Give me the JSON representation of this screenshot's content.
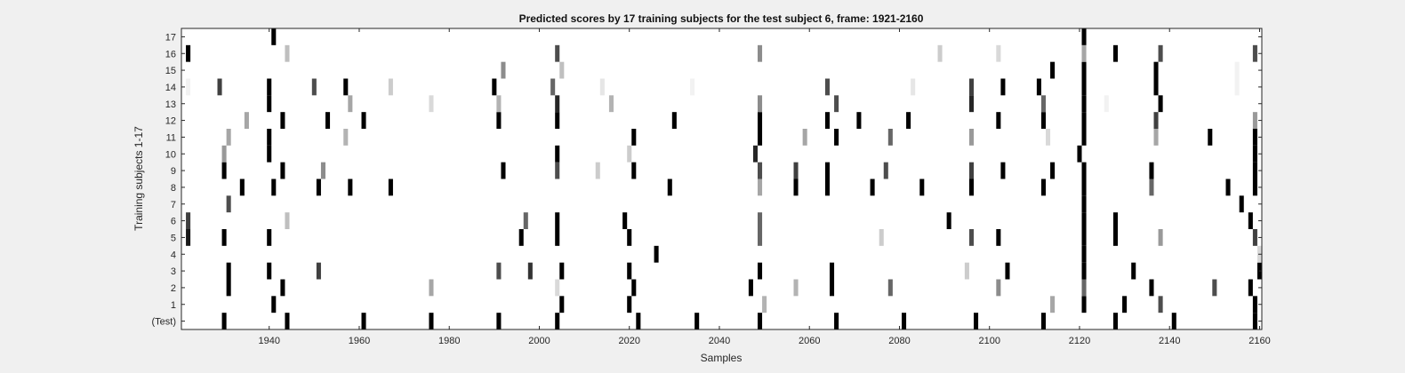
{
  "chart_data": {
    "type": "heatmap",
    "title": "Predicted scores by 17 training subjects for the test subject 6, frame: 1921-2160",
    "xlabel": "Samples",
    "ylabel": "Training subjects 1-17",
    "xlim": [
      1921,
      2160
    ],
    "x_ticks": [
      1940,
      1960,
      1980,
      2000,
      2020,
      2040,
      2060,
      2080,
      2100,
      2120,
      2140,
      2160
    ],
    "rows": [
      "(Test)",
      "1",
      "2",
      "3",
      "4",
      "5",
      "6",
      "7",
      "8",
      "9",
      "10",
      "11",
      "12",
      "13",
      "14",
      "15",
      "16",
      "17"
    ],
    "value_scale": "0 = white, 1 = black",
    "cells": [
      {
        "row": "(Test)",
        "marks": [
          [
            1930,
            1
          ],
          [
            1944,
            1
          ],
          [
            1961,
            1
          ],
          [
            1976,
            1
          ],
          [
            1991,
            1
          ],
          [
            2004,
            1
          ],
          [
            2022,
            1
          ],
          [
            2035,
            1
          ],
          [
            2049,
            1
          ],
          [
            2066,
            1
          ],
          [
            2081,
            1
          ],
          [
            2097,
            1
          ],
          [
            2112,
            1
          ],
          [
            2128,
            1
          ],
          [
            2141,
            1
          ],
          [
            2159,
            1
          ]
        ]
      },
      {
        "row": "1",
        "marks": [
          [
            1941,
            1
          ],
          [
            2005,
            1
          ],
          [
            2020,
            1
          ],
          [
            2050,
            0.3
          ],
          [
            2114,
            0.35
          ],
          [
            2121,
            1
          ],
          [
            2130,
            1
          ],
          [
            2138,
            0.7
          ],
          [
            2159,
            1
          ]
        ]
      },
      {
        "row": "2",
        "marks": [
          [
            1931,
            1
          ],
          [
            1943,
            1
          ],
          [
            1976,
            0.35
          ],
          [
            2004,
            0.15
          ],
          [
            2021,
            1
          ],
          [
            2047,
            1
          ],
          [
            2057,
            0.3
          ],
          [
            2065,
            1
          ],
          [
            2078,
            0.6
          ],
          [
            2102,
            0.45
          ],
          [
            2121,
            0.6
          ],
          [
            2136,
            1
          ],
          [
            2150,
            0.7
          ],
          [
            2158,
            1
          ]
        ]
      },
      {
        "row": "3",
        "marks": [
          [
            1931,
            1
          ],
          [
            1940,
            1
          ],
          [
            1951,
            0.75
          ],
          [
            1991,
            0.7
          ],
          [
            1998,
            0.8
          ],
          [
            2005,
            1
          ],
          [
            2020,
            1
          ],
          [
            2049,
            1
          ],
          [
            2065,
            1
          ],
          [
            2095,
            0.2
          ],
          [
            2104,
            1
          ],
          [
            2121,
            1
          ],
          [
            2132,
            1
          ],
          [
            2160,
            1
          ]
        ]
      },
      {
        "row": "4",
        "marks": [
          [
            2026,
            1
          ],
          [
            2121,
            1
          ],
          [
            2160,
            0.15
          ]
        ]
      },
      {
        "row": "5",
        "marks": [
          [
            1922,
            0.9
          ],
          [
            1930,
            1
          ],
          [
            1940,
            1
          ],
          [
            1996,
            1
          ],
          [
            2004,
            1
          ],
          [
            2020,
            1
          ],
          [
            2049,
            0.6
          ],
          [
            2076,
            0.2
          ],
          [
            2096,
            0.7
          ],
          [
            2102,
            1
          ],
          [
            2121,
            1
          ],
          [
            2128,
            1
          ],
          [
            2138,
            0.4
          ],
          [
            2159,
            0.75
          ]
        ]
      },
      {
        "row": "6",
        "marks": [
          [
            1922,
            0.75
          ],
          [
            1944,
            0.25
          ],
          [
            1997,
            0.6
          ],
          [
            2004,
            1
          ],
          [
            2019,
            1
          ],
          [
            2049,
            0.6
          ],
          [
            2091,
            1
          ],
          [
            2121,
            1
          ],
          [
            2128,
            1
          ],
          [
            2158,
            1
          ]
        ]
      },
      {
        "row": "7",
        "marks": [
          [
            1931,
            0.7
          ],
          [
            2121,
            1
          ],
          [
            2156,
            1
          ]
        ]
      },
      {
        "row": "8",
        "marks": [
          [
            1934,
            1
          ],
          [
            1941,
            1
          ],
          [
            1951,
            1
          ],
          [
            1958,
            1
          ],
          [
            1967,
            1
          ],
          [
            2029,
            1
          ],
          [
            2049,
            0.35
          ],
          [
            2057,
            1
          ],
          [
            2064,
            1
          ],
          [
            2074,
            1
          ],
          [
            2085,
            1
          ],
          [
            2096,
            1
          ],
          [
            2112,
            1
          ],
          [
            2121,
            1
          ],
          [
            2136,
            0.6
          ],
          [
            2153,
            1
          ],
          [
            2159,
            1
          ]
        ]
      },
      {
        "row": "9",
        "marks": [
          [
            1930,
            1
          ],
          [
            1943,
            1
          ],
          [
            1952,
            0.45
          ],
          [
            1992,
            1
          ],
          [
            2004,
            0.7
          ],
          [
            2013,
            0.2
          ],
          [
            2021,
            1
          ],
          [
            2049,
            0.7
          ],
          [
            2057,
            0.75
          ],
          [
            2064,
            1
          ],
          [
            2077,
            0.7
          ],
          [
            2096,
            0.75
          ],
          [
            2103,
            1
          ],
          [
            2114,
            1
          ],
          [
            2121,
            1
          ],
          [
            2136,
            1
          ],
          [
            2159,
            1
          ]
        ]
      },
      {
        "row": "10",
        "marks": [
          [
            1930,
            0.4
          ],
          [
            1940,
            1
          ],
          [
            2004,
            1
          ],
          [
            2020,
            0.2
          ],
          [
            2048,
            0.85
          ],
          [
            2120,
            1
          ],
          [
            2159,
            1
          ]
        ]
      },
      {
        "row": "11",
        "marks": [
          [
            1931,
            0.35
          ],
          [
            1940,
            1
          ],
          [
            1957,
            0.3
          ],
          [
            2021,
            1
          ],
          [
            2049,
            1
          ],
          [
            2059,
            0.35
          ],
          [
            2066,
            1
          ],
          [
            2078,
            0.6
          ],
          [
            2096,
            0.4
          ],
          [
            2113,
            0.15
          ],
          [
            2121,
            1
          ],
          [
            2137,
            0.35
          ],
          [
            2149,
            1
          ],
          [
            2159,
            1
          ]
        ]
      },
      {
        "row": "12",
        "marks": [
          [
            1935,
            0.35
          ],
          [
            1943,
            1
          ],
          [
            1953,
            1
          ],
          [
            1961,
            1
          ],
          [
            1991,
            1
          ],
          [
            2004,
            1
          ],
          [
            2030,
            1
          ],
          [
            2049,
            1
          ],
          [
            2064,
            1
          ],
          [
            2071,
            1
          ],
          [
            2082,
            1
          ],
          [
            2102,
            1
          ],
          [
            2112,
            1
          ],
          [
            2121,
            1
          ],
          [
            2137,
            0.75
          ],
          [
            2159,
            0.4
          ]
        ]
      },
      {
        "row": "13",
        "marks": [
          [
            1940,
            1
          ],
          [
            1958,
            0.35
          ],
          [
            1976,
            0.15
          ],
          [
            1991,
            0.3
          ],
          [
            2004,
            0.85
          ],
          [
            2016,
            0.3
          ],
          [
            2049,
            0.45
          ],
          [
            2066,
            0.7
          ],
          [
            2096,
            0.85
          ],
          [
            2112,
            0.6
          ],
          [
            2121,
            1
          ],
          [
            2126,
            0.05
          ],
          [
            2138,
            1
          ]
        ]
      },
      {
        "row": "14",
        "marks": [
          [
            1922,
            0.05
          ],
          [
            1929,
            0.75
          ],
          [
            1940,
            1
          ],
          [
            1950,
            0.7
          ],
          [
            1957,
            1
          ],
          [
            1967,
            0.2
          ],
          [
            1990,
            1
          ],
          [
            2003,
            0.6
          ],
          [
            2014,
            0.1
          ],
          [
            2034,
            0.05
          ],
          [
            2064,
            0.7
          ],
          [
            2083,
            0.1
          ],
          [
            2096,
            0.75
          ],
          [
            2103,
            1
          ],
          [
            2111,
            1
          ],
          [
            2121,
            1
          ],
          [
            2137,
            1
          ],
          [
            2155,
            0.05
          ]
        ]
      },
      {
        "row": "15",
        "marks": [
          [
            1992,
            0.45
          ],
          [
            2005,
            0.25
          ],
          [
            2114,
            1
          ],
          [
            2121,
            1
          ],
          [
            2137,
            1
          ],
          [
            2155,
            0.05
          ]
        ]
      },
      {
        "row": "16",
        "marks": [
          [
            1922,
            1
          ],
          [
            1944,
            0.25
          ],
          [
            2004,
            0.7
          ],
          [
            2049,
            0.45
          ],
          [
            2089,
            0.2
          ],
          [
            2102,
            0.15
          ],
          [
            2121,
            0.35
          ],
          [
            2128,
            1
          ],
          [
            2138,
            0.7
          ],
          [
            2159,
            0.7
          ]
        ]
      },
      {
        "row": "17",
        "marks": [
          [
            1941,
            1
          ],
          [
            2121,
            1
          ]
        ]
      }
    ]
  }
}
